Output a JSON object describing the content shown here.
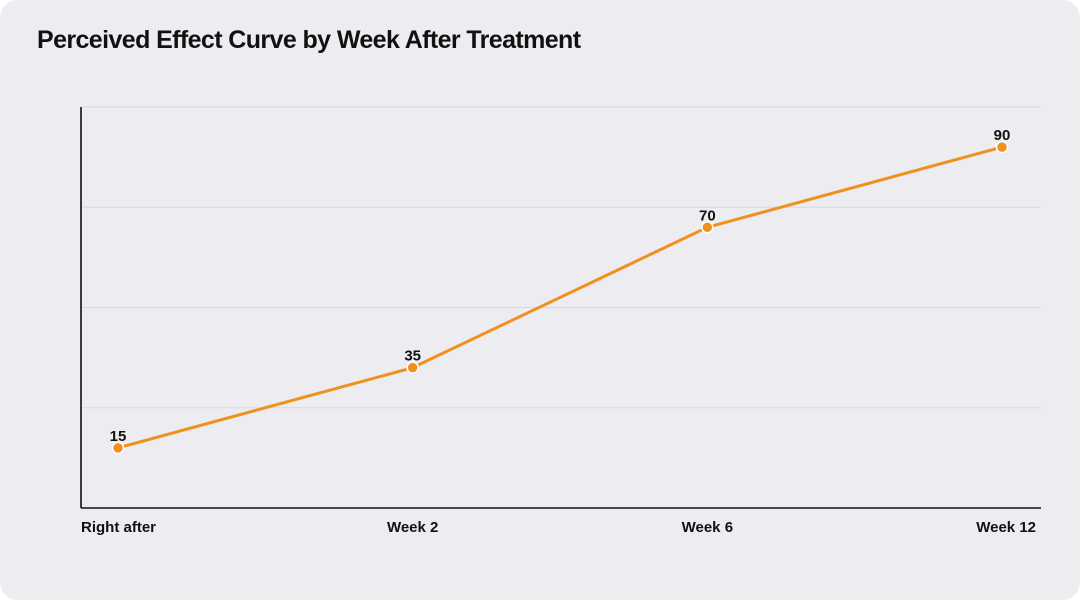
{
  "chart_data": {
    "type": "line",
    "title": "Perceived Effect Curve by Week After Treatment",
    "categories": [
      "Right after",
      "Week 2",
      "Week 6",
      "Week 12"
    ],
    "series": [
      {
        "values": [
          15,
          35,
          70,
          90
        ],
        "color": "#f0901e"
      }
    ],
    "ylim": [
      0,
      100
    ],
    "y_ticks_shown": false,
    "grid": true,
    "data_labels": true
  }
}
